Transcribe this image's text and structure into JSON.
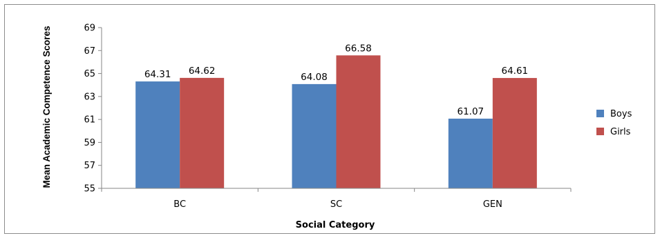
{
  "chart_data": {
    "type": "bar",
    "categories": [
      "BC",
      "SC",
      "GEN"
    ],
    "series": [
      {
        "name": "Boys",
        "values": [
          64.31,
          64.08,
          61.07
        ],
        "color": "#4F81BD"
      },
      {
        "name": "Girls",
        "values": [
          64.62,
          66.58,
          64.61
        ],
        "color": "#C0504D"
      }
    ],
    "data_labels": [
      [
        "64.31",
        "64.08",
        "61.07"
      ],
      [
        "64.62",
        "66.58",
        "64.61"
      ]
    ],
    "title": "",
    "xlabel": "Social Category",
    "ylabel": "Mean Academic Competence Scores",
    "ylim": [
      55,
      69
    ],
    "yticks": [
      55,
      57,
      59,
      61,
      63,
      65,
      67,
      69
    ],
    "grid": false,
    "legend_position": "right"
  }
}
